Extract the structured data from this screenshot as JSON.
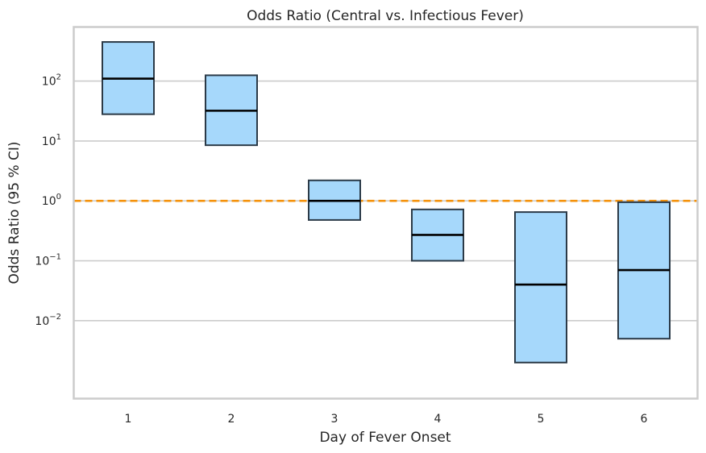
{
  "chart_data": {
    "type": "box",
    "title": "Odds Ratio (Central vs. Infectious Fever)",
    "xlabel": "Day of Fever Onset",
    "ylabel": "Odds Ratio (95 % CI)",
    "yscale": "log",
    "ylim": [
      0.0005,
      800
    ],
    "categories": [
      "1",
      "2",
      "3",
      "4",
      "5",
      "6"
    ],
    "y_ticks": [
      {
        "value": 0.01,
        "base": "10",
        "exp": "−2"
      },
      {
        "value": 0.1,
        "base": "10",
        "exp": "−1"
      },
      {
        "value": 1,
        "base": "10",
        "exp": "0"
      },
      {
        "value": 10,
        "base": "10",
        "exp": "1"
      },
      {
        "value": 100,
        "base": "10",
        "exp": "2"
      }
    ],
    "series": [
      {
        "day": "1",
        "lower": 28,
        "median": 110,
        "upper": 450
      },
      {
        "day": "2",
        "lower": 8.5,
        "median": 32,
        "upper": 125
      },
      {
        "day": "3",
        "lower": 0.48,
        "median": 1.0,
        "upper": 2.2
      },
      {
        "day": "4",
        "lower": 0.1,
        "median": 0.27,
        "upper": 0.72
      },
      {
        "day": "5",
        "lower": 0.002,
        "median": 0.04,
        "upper": 0.65
      },
      {
        "day": "6",
        "lower": 0.005,
        "median": 0.07,
        "upper": 0.95
      }
    ],
    "reference_line": {
      "value": 1,
      "color": "#f5920a"
    },
    "box_color": "#a6d8fb",
    "grid": true
  }
}
